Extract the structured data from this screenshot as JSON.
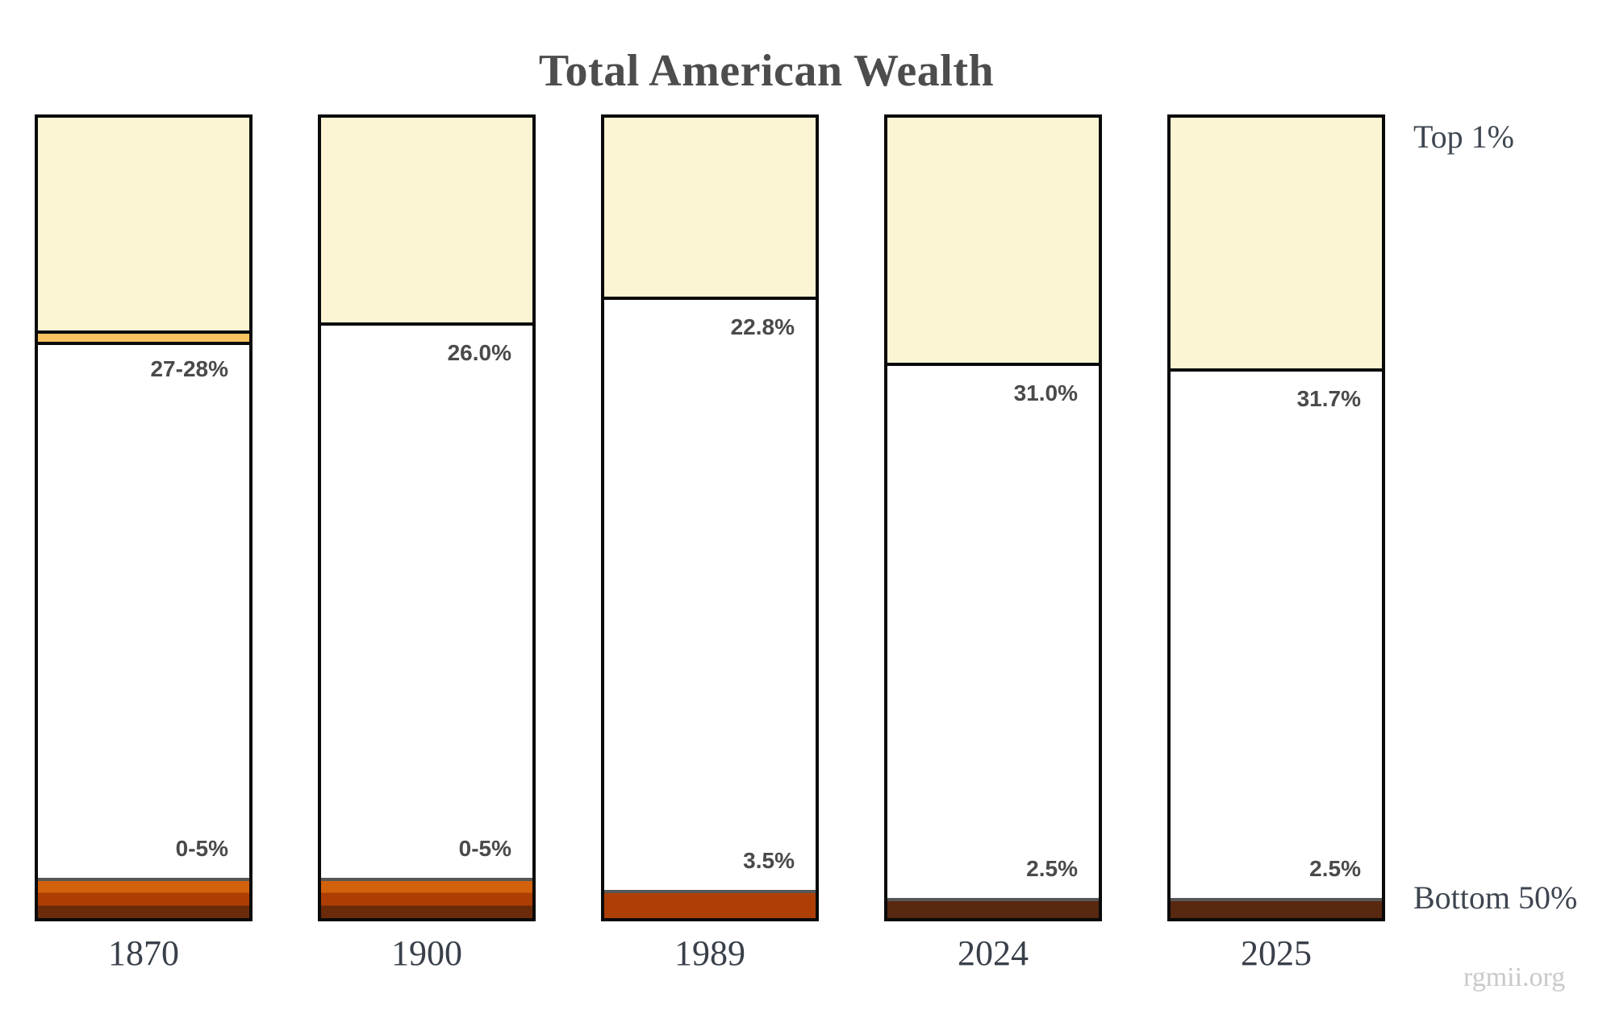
{
  "chart_data": {
    "type": "stacked-bar",
    "title": "Total American Wealth",
    "legend": {
      "top": "Top 1%",
      "bottom": "Bottom 50%"
    },
    "watermark": "rgmii.org",
    "units": "percent share of total American wealth",
    "categories": [
      "1870",
      "1900",
      "1989",
      "2024",
      "2025"
    ],
    "bars": [
      {
        "year": "1870",
        "top1_label": "27-28%",
        "top1_pct": 27,
        "top1_pct_high": 28,
        "bottom50_label": "0-5%",
        "bottom50_pct": 5,
        "bottom_style": "gradient"
      },
      {
        "year": "1900",
        "top1_label": "26.0%",
        "top1_pct": 26.0,
        "bottom50_label": "0-5%",
        "bottom50_pct": 5,
        "bottom_style": "gradient"
      },
      {
        "year": "1989",
        "top1_label": "22.8%",
        "top1_pct": 22.8,
        "bottom50_label": "3.5%",
        "bottom50_pct": 3.5,
        "bottom_style": "solid-rust"
      },
      {
        "year": "2024",
        "top1_label": "31.0%",
        "top1_pct": 31.0,
        "bottom50_label": "2.5%",
        "bottom50_pct": 2.5,
        "bottom_style": "solid-brown"
      },
      {
        "year": "2025",
        "top1_label": "31.7%",
        "top1_pct": 31.7,
        "bottom50_label": "2.5%",
        "bottom50_pct": 2.5,
        "bottom_style": "solid-brown"
      }
    ],
    "colors": {
      "top1_fill": "#FBF5D3",
      "uncertainty_band": "#F7C25F",
      "gradient_top": "#D2610C",
      "gradient_mid": "#AC3E04",
      "gradient_bottom": "#6B2B0A",
      "solid_rust": "#AD3F06",
      "solid_brown": "#582811",
      "segment_divider": "#575757",
      "bar_border": "#0A0A0A"
    }
  }
}
